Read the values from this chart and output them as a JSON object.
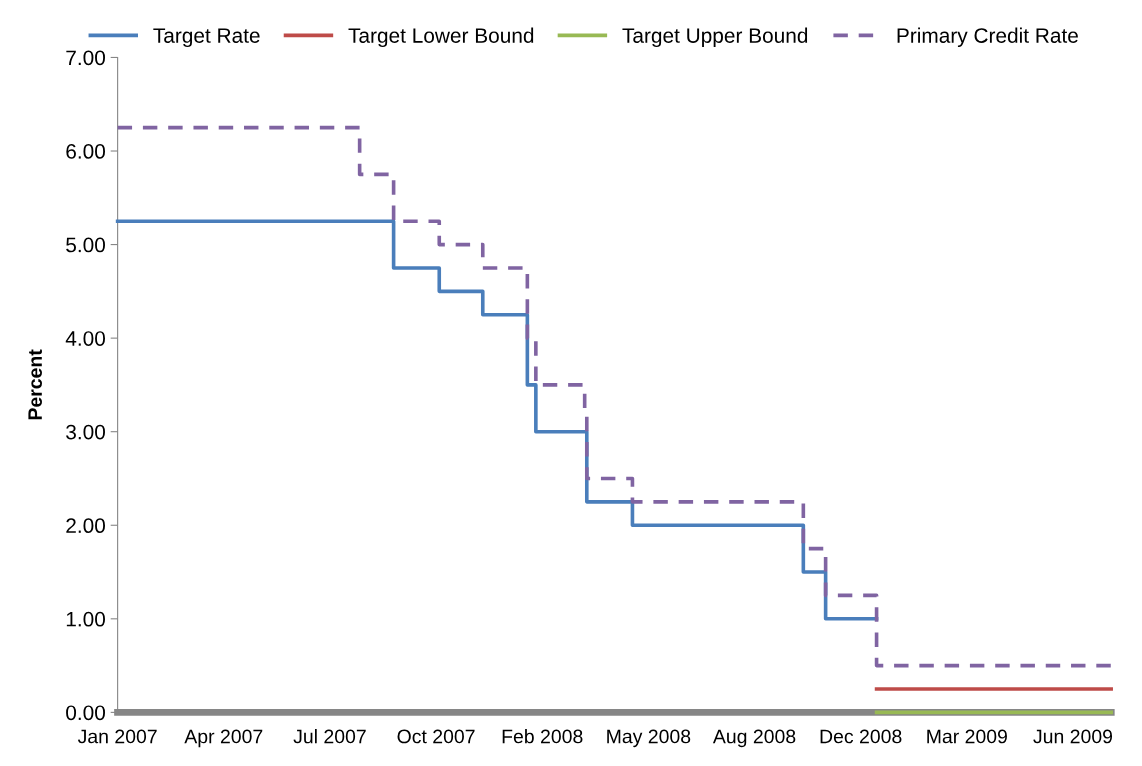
{
  "chart_data": {
    "type": "step",
    "ylabel": "Percent",
    "xlim": [
      "2007-01-01",
      "2009-07-25"
    ],
    "xticks": [
      {
        "value": "2007-01-01",
        "label": "Jan 2007"
      },
      {
        "value": "2007-04-11",
        "label": "Apr 2007"
      },
      {
        "value": "2007-07-20",
        "label": "Jul 2007"
      },
      {
        "value": "2007-10-28",
        "label": "Oct 2007"
      },
      {
        "value": "2008-02-05",
        "label": "Feb 2008"
      },
      {
        "value": "2008-05-15",
        "label": "May 2008"
      },
      {
        "value": "2008-08-23",
        "label": "Aug 2008"
      },
      {
        "value": "2008-12-01",
        "label": "Dec 2008"
      },
      {
        "value": "2009-03-11",
        "label": "Mar 2009"
      },
      {
        "value": "2009-06-19",
        "label": "Jun 2009"
      }
    ],
    "ylim": [
      0,
      7
    ],
    "yticks": [
      {
        "value": 0,
        "label": "0.00"
      },
      {
        "value": 1,
        "label": "1.00"
      },
      {
        "value": 2,
        "label": "2.00"
      },
      {
        "value": 3,
        "label": "3.00"
      },
      {
        "value": 4,
        "label": "4.00"
      },
      {
        "value": 5,
        "label": "5.00"
      },
      {
        "value": 6,
        "label": "6.00"
      },
      {
        "value": 7,
        "label": "7.00"
      }
    ],
    "grid": false,
    "legend": "top",
    "marker": "none",
    "series": [
      {
        "name": "Target Rate",
        "color": "#4a7ebb",
        "line_style": "solid",
        "x": [
          "2007-01-01",
          "2007-09-18",
          "2007-10-31",
          "2007-12-11",
          "2008-01-22",
          "2008-01-30",
          "2008-03-18",
          "2008-04-30",
          "2008-10-08",
          "2008-10-29",
          "2008-12-16"
        ],
        "values": [
          5.25,
          4.75,
          4.5,
          4.25,
          3.5,
          3.0,
          2.25,
          2.0,
          1.5,
          1.0,
          1.0
        ]
      },
      {
        "name": "Target Lower Bound",
        "color": "#be4b48",
        "line_style": "solid",
        "x": [
          "2008-12-16",
          "2009-07-25"
        ],
        "values": [
          0.25,
          0.25
        ]
      },
      {
        "name": "Target Upper Bound",
        "color": "#98b954",
        "line_style": "solid",
        "x": [
          "2008-12-16",
          "2009-07-25"
        ],
        "values": [
          0,
          0
        ]
      },
      {
        "name": "Primary Credit Rate",
        "color": "#8064a2",
        "line_style": "dashed",
        "x": [
          "2007-01-01",
          "2007-08-17",
          "2007-09-18",
          "2007-10-31",
          "2007-12-11",
          "2008-01-22",
          "2008-01-30",
          "2008-03-16",
          "2008-03-18",
          "2008-04-30",
          "2008-10-08",
          "2008-10-29",
          "2008-12-16",
          "2009-07-25"
        ],
        "values": [
          6.25,
          5.75,
          5.25,
          5.0,
          4.75,
          4.0,
          3.5,
          3.25,
          2.5,
          2.25,
          1.75,
          1.25,
          0.5,
          0.5
        ]
      }
    ]
  }
}
